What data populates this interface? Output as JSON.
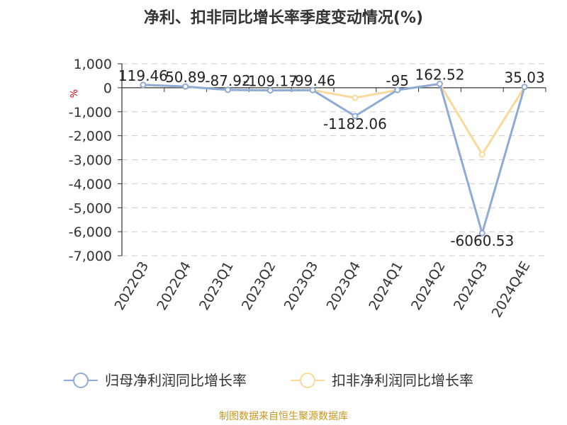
{
  "chart_data": {
    "type": "line",
    "title": "净利、扣非同比增长率季度变动情况(%)",
    "ylabel": "%",
    "categories": [
      "2022Q3",
      "2022Q4",
      "2023Q1",
      "2023Q2",
      "2023Q3",
      "2023Q4",
      "2024Q1",
      "2024Q2",
      "2024Q3",
      "2024Q4E"
    ],
    "ylim": [
      -7000,
      1000
    ],
    "yticks": [
      1000,
      0,
      -1000,
      -2000,
      -3000,
      -4000,
      -5000,
      -6000,
      -7000
    ],
    "ytick_labels": [
      "1,000",
      "0",
      "-1,000",
      "-2,000",
      "-3,000",
      "-4,000",
      "-5,000",
      "-6,000",
      "-7,000"
    ],
    "grid": true,
    "legend_position": "bottom",
    "series": [
      {
        "name": "归母净利润同比增长率",
        "color": "#8eaad6",
        "values": [
          119.46,
          50.89,
          -87.92,
          -109.17,
          -99.46,
          -1182.06,
          -95,
          162.52,
          -6060.53,
          35.03
        ],
        "labels": [
          "119.46",
          "50.89",
          "-87.92",
          "-109.17",
          "-99.46",
          "-1182.06",
          "-95",
          "162.52",
          "-6060.53",
          "35.03"
        ]
      },
      {
        "name": "扣非净利润同比增长率",
        "color": "#f8d99a",
        "values": [
          119.46,
          50.89,
          -87.92,
          -109.17,
          -99.46,
          -420,
          -95,
          162.52,
          -2780,
          35.03
        ]
      }
    ]
  },
  "source_text": "制图数据来自恒生聚源数据库"
}
